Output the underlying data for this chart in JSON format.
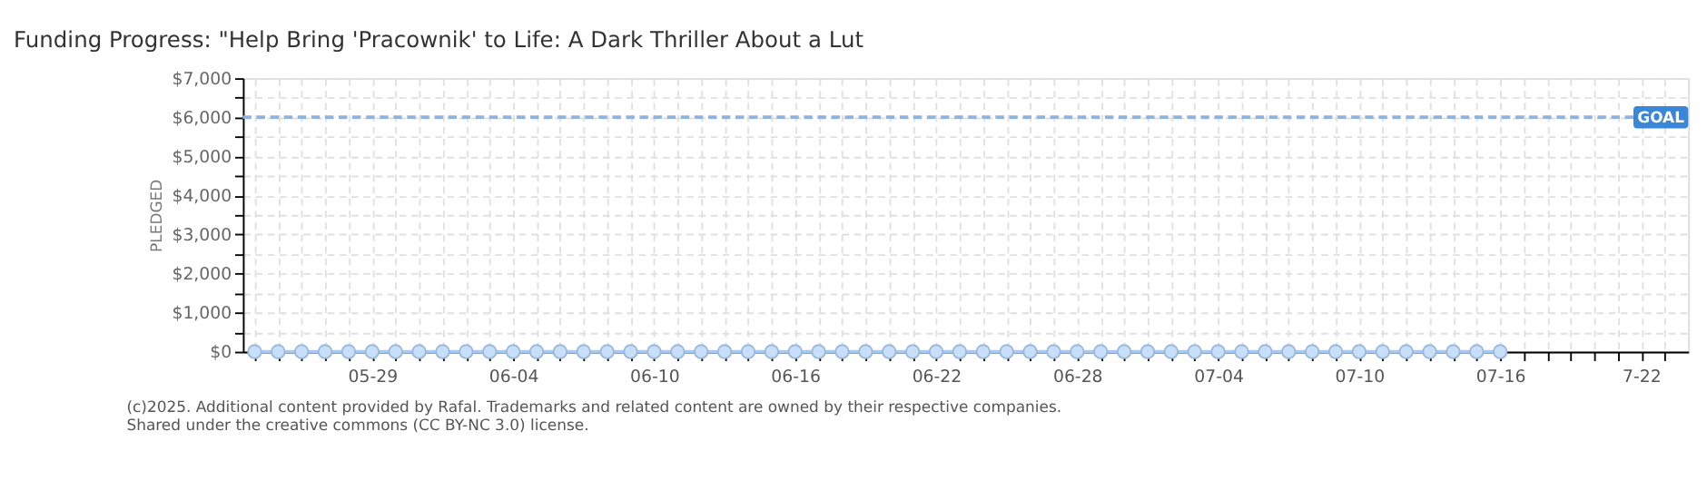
{
  "chart_data": {
    "type": "line",
    "title": "Funding Progress: \"Help Bring 'Pracownik' to Life: A Dark Thriller About a Lut",
    "ylabel": "PLEDGED",
    "x": [
      "2025-05-24",
      "2025-05-25",
      "2025-05-26",
      "2025-05-27",
      "2025-05-28",
      "2025-05-29",
      "2025-05-30",
      "2025-05-31",
      "2025-06-01",
      "2025-06-02",
      "2025-06-03",
      "2025-06-04",
      "2025-06-05",
      "2025-06-06",
      "2025-06-07",
      "2025-06-08",
      "2025-06-09",
      "2025-06-10",
      "2025-06-11",
      "2025-06-12",
      "2025-06-13",
      "2025-06-14",
      "2025-06-15",
      "2025-06-16",
      "2025-06-17",
      "2025-06-18",
      "2025-06-19",
      "2025-06-20",
      "2025-06-21",
      "2025-06-22",
      "2025-06-23",
      "2025-06-24",
      "2025-06-25",
      "2025-06-26",
      "2025-06-27",
      "2025-06-28",
      "2025-06-29",
      "2025-06-30",
      "2025-07-01",
      "2025-07-02",
      "2025-07-03",
      "2025-07-04",
      "2025-07-05",
      "2025-07-06",
      "2025-07-07",
      "2025-07-08",
      "2025-07-09",
      "2025-07-10",
      "2025-07-11",
      "2025-07-12",
      "2025-07-13",
      "2025-07-14",
      "2025-07-15",
      "2025-07-16"
    ],
    "series": [
      {
        "color": "#a9c8ee",
        "values": [
          0,
          0,
          0,
          0,
          0,
          0,
          0,
          0,
          0,
          0,
          0,
          0,
          0,
          0,
          0,
          0,
          0,
          0,
          0,
          0,
          0,
          0,
          0,
          0,
          0,
          0,
          0,
          0,
          0,
          0,
          0,
          0,
          0,
          0,
          0,
          0,
          0,
          0,
          0,
          0,
          0,
          0,
          0,
          0,
          0,
          0,
          0,
          0,
          0,
          0,
          0,
          0,
          0,
          0
        ]
      }
    ],
    "xlim": [
      "2025-05-23T12:00",
      "2025-07-24T00:00"
    ],
    "xticks": [
      {
        "value": "2025-05-24",
        "label": null
      },
      {
        "value": "2025-05-25",
        "label": null
      },
      {
        "value": "2025-05-26",
        "label": null
      },
      {
        "value": "2025-05-27",
        "label": null
      },
      {
        "value": "2025-05-28",
        "label": null
      },
      {
        "value": "2025-05-29",
        "label": "05-29"
      },
      {
        "value": "2025-05-30",
        "label": null
      },
      {
        "value": "2025-05-31",
        "label": null
      },
      {
        "value": "2025-06-01",
        "label": null
      },
      {
        "value": "2025-06-02",
        "label": null
      },
      {
        "value": "2025-06-03",
        "label": null
      },
      {
        "value": "2025-06-04",
        "label": "06-04"
      },
      {
        "value": "2025-06-05",
        "label": null
      },
      {
        "value": "2025-06-06",
        "label": null
      },
      {
        "value": "2025-06-07",
        "label": null
      },
      {
        "value": "2025-06-08",
        "label": null
      },
      {
        "value": "2025-06-09",
        "label": null
      },
      {
        "value": "2025-06-10",
        "label": "06-10"
      },
      {
        "value": "2025-06-11",
        "label": null
      },
      {
        "value": "2025-06-12",
        "label": null
      },
      {
        "value": "2025-06-13",
        "label": null
      },
      {
        "value": "2025-06-14",
        "label": null
      },
      {
        "value": "2025-06-15",
        "label": null
      },
      {
        "value": "2025-06-16",
        "label": "06-16"
      },
      {
        "value": "2025-06-17",
        "label": null
      },
      {
        "value": "2025-06-18",
        "label": null
      },
      {
        "value": "2025-06-19",
        "label": null
      },
      {
        "value": "2025-06-20",
        "label": null
      },
      {
        "value": "2025-06-21",
        "label": null
      },
      {
        "value": "2025-06-22",
        "label": "06-22"
      },
      {
        "value": "2025-06-23",
        "label": null
      },
      {
        "value": "2025-06-24",
        "label": null
      },
      {
        "value": "2025-06-25",
        "label": null
      },
      {
        "value": "2025-06-26",
        "label": null
      },
      {
        "value": "2025-06-27",
        "label": null
      },
      {
        "value": "2025-06-28",
        "label": "06-28"
      },
      {
        "value": "2025-06-29",
        "label": null
      },
      {
        "value": "2025-06-30",
        "label": null
      },
      {
        "value": "2025-07-01",
        "label": null
      },
      {
        "value": "2025-07-02",
        "label": null
      },
      {
        "value": "2025-07-03",
        "label": null
      },
      {
        "value": "2025-07-04",
        "label": "07-04"
      },
      {
        "value": "2025-07-05",
        "label": null
      },
      {
        "value": "2025-07-06",
        "label": null
      },
      {
        "value": "2025-07-07",
        "label": null
      },
      {
        "value": "2025-07-08",
        "label": null
      },
      {
        "value": "2025-07-09",
        "label": null
      },
      {
        "value": "2025-07-10",
        "label": "07-10"
      },
      {
        "value": "2025-07-11",
        "label": null
      },
      {
        "value": "2025-07-12",
        "label": null
      },
      {
        "value": "2025-07-13",
        "label": null
      },
      {
        "value": "2025-07-14",
        "label": null
      },
      {
        "value": "2025-07-15",
        "label": null
      },
      {
        "value": "2025-07-16",
        "label": "07-16"
      },
      {
        "value": "2025-07-17",
        "label": null
      },
      {
        "value": "2025-07-18",
        "label": null
      },
      {
        "value": "2025-07-19",
        "label": null
      },
      {
        "value": "2025-07-20",
        "label": null
      },
      {
        "value": "2025-07-21",
        "label": null
      },
      {
        "value": "2025-07-22",
        "label": "7-22"
      },
      {
        "value": "2025-07-23",
        "label": null
      }
    ],
    "ylim": [
      0,
      7000
    ],
    "yticks": [
      {
        "value": 0,
        "label": "$0"
      },
      {
        "value": 500,
        "label": null
      },
      {
        "value": 1000,
        "label": "$1,000"
      },
      {
        "value": 1500,
        "label": null
      },
      {
        "value": 2000,
        "label": "$2,000"
      },
      {
        "value": 2500,
        "label": null
      },
      {
        "value": 3000,
        "label": "$3,000"
      },
      {
        "value": 3500,
        "label": null
      },
      {
        "value": 4000,
        "label": "$4,000"
      },
      {
        "value": 4500,
        "label": null
      },
      {
        "value": 5000,
        "label": "$5,000"
      },
      {
        "value": 5500,
        "label": null
      },
      {
        "value": 6000,
        "label": "$6,000"
      },
      {
        "value": 6500,
        "label": null
      },
      {
        "value": 7000,
        "label": "$7,000"
      }
    ],
    "ref_lines": [
      {
        "axis": "y",
        "value": 6000,
        "label": "GOAL",
        "color": "#8fb3e0",
        "line_style": "dashed"
      }
    ],
    "grid": true,
    "marker": "circle",
    "line_style": "solid",
    "annotations": [
      "(c)2025. Additional content provided by Rafal. Trademarks and related content are owned by their respective companies.",
      "Shared under the creative commons (CC BY-NC 3.0) license."
    ]
  }
}
